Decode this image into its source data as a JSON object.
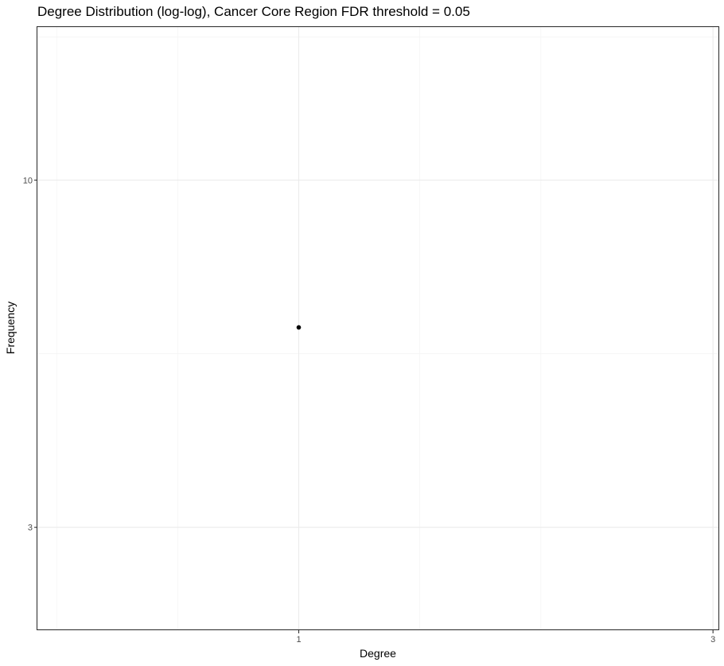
{
  "chart_data": {
    "type": "scatter",
    "title": "Degree Distribution (log-log), Cancer Core Region FDR threshold = 0.05",
    "xlabel": "Degree",
    "ylabel": "Frequency",
    "x_scale": "log10",
    "y_scale": "log10",
    "xlim": [
      0.5,
      3.05
    ],
    "ylim": [
      2.1,
      17.0
    ],
    "x_ticks": [
      {
        "value": 1,
        "label": "1"
      },
      {
        "value": 3,
        "label": "3"
      }
    ],
    "y_ticks": [
      {
        "value": 3,
        "label": "3"
      },
      {
        "value": 10,
        "label": "10"
      }
    ],
    "x_minor_grid": [
      0.5262,
      0.7254,
      1.3786,
      1.9006
    ],
    "y_minor_grid": [
      5.4772,
      16.431
    ],
    "grid": true,
    "points": [
      {
        "x": 1,
        "y": 6
      }
    ],
    "point_color": "#000000"
  }
}
